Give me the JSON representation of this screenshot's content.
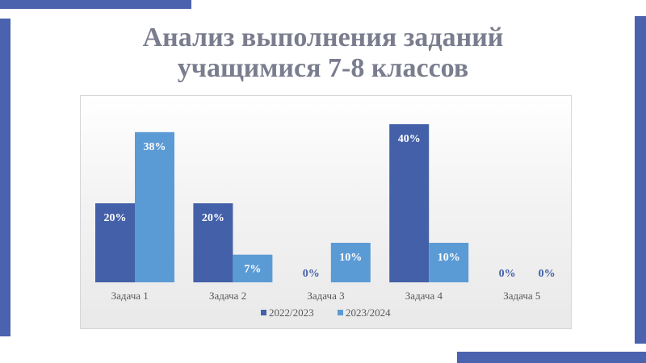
{
  "slide": {
    "title_line1": "Анализ выполнения заданий",
    "title_line2": "учащимися 7-8 классов"
  },
  "colors": {
    "accent": "#4b62ae",
    "title": "#7a7d8e"
  },
  "chart_data": {
    "type": "bar",
    "title": "",
    "xlabel": "",
    "ylabel": "",
    "categories": [
      "Задача 1",
      "Задача 2",
      "Задача 3",
      "Задача 4",
      "Задача 5"
    ],
    "series": [
      {
        "name": "2022/2023",
        "color": "#4360a8",
        "values": [
          20,
          20,
          0,
          40,
          0
        ],
        "labels": [
          "20%",
          "20%",
          "0%",
          "40%",
          "0%"
        ]
      },
      {
        "name": "2023/2024",
        "color": "#5b9bd5",
        "values": [
          38,
          7,
          10,
          10,
          0
        ],
        "labels": [
          "38%",
          "7%",
          "10%",
          "10%",
          "0%"
        ]
      }
    ],
    "ylim": [
      0,
      40
    ],
    "grid": false,
    "legend": "bottom"
  }
}
